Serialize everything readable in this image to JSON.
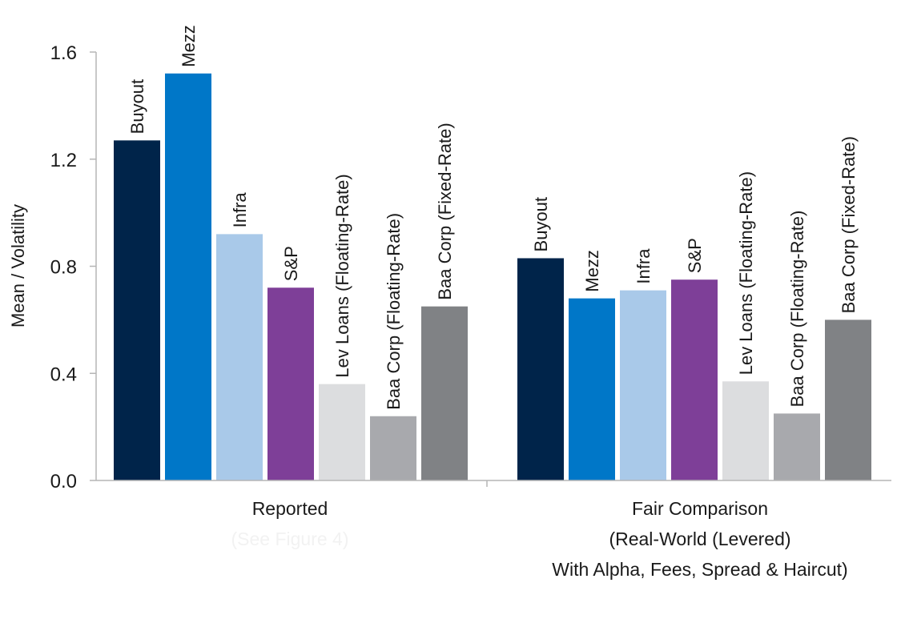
{
  "chart_data": {
    "type": "bar",
    "ylabel": "Mean / Volatility",
    "ylim": [
      0,
      1.6
    ],
    "yticks": [
      "0.0",
      "0.4",
      "0.8",
      "1.2",
      "1.6"
    ],
    "grid": false,
    "groups": [
      {
        "label_lines": [
          "Reported",
          "(See Figure 4)"
        ],
        "faint_lines": [
          1
        ],
        "bars": [
          {
            "name": "Buyout",
            "value": 1.27,
            "color": "#00244a"
          },
          {
            "name": "Mezz",
            "value": 1.52,
            "color": "#0077c8"
          },
          {
            "name": "Infra",
            "value": 0.92,
            "color": "#a9c9e9"
          },
          {
            "name": "S&P",
            "value": 0.72,
            "color": "#7e3f98"
          },
          {
            "name": "Lev Loans (Floating-Rate)",
            "value": 0.36,
            "color": "#dcdddf"
          },
          {
            "name": "Baa Corp (Floating-Rate)",
            "value": 0.24,
            "color": "#a8a9ad"
          },
          {
            "name": "Baa Corp (Fixed-Rate)",
            "value": 0.65,
            "color": "#808285"
          }
        ]
      },
      {
        "label_lines": [
          "Fair Comparison",
          "(Real-World (Levered)",
          "With Alpha, Fees, Spread & Haircut)"
        ],
        "faint_lines": [],
        "bars": [
          {
            "name": "Buyout",
            "value": 0.83,
            "color": "#00244a"
          },
          {
            "name": "Mezz",
            "value": 0.68,
            "color": "#0077c8"
          },
          {
            "name": "Infra",
            "value": 0.71,
            "color": "#a9c9e9"
          },
          {
            "name": "S&P",
            "value": 0.75,
            "color": "#7e3f98"
          },
          {
            "name": "Lev Loans (Floating-Rate)",
            "value": 0.37,
            "color": "#dcdddf"
          },
          {
            "name": "Baa Corp (Floating-Rate)",
            "value": 0.25,
            "color": "#a8a9ad"
          },
          {
            "name": "Baa Corp (Fixed-Rate)",
            "value": 0.6,
            "color": "#808285"
          }
        ]
      }
    ]
  }
}
